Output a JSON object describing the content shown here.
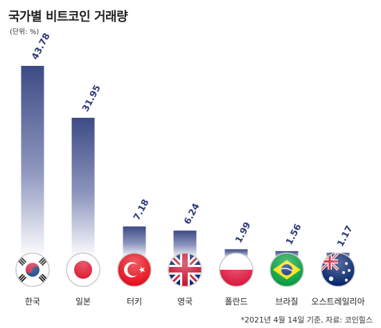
{
  "title": "국가별 비트코인 거래량",
  "unit": "(단위: %)",
  "footnote": "*2021년 4월 14일 기준, 자료: 코인힐스",
  "colors": {
    "bar_top": "#3d4b85",
    "bar_bottom": "#ffffff",
    "value_text": "#2f3a78"
  },
  "chart_data": {
    "type": "bar",
    "categories": [
      "한국",
      "일본",
      "터키",
      "영국",
      "폴란드",
      "브라질",
      "오스트레일리아"
    ],
    "values": [
      43.78,
      31.95,
      7.18,
      6.24,
      1.99,
      1.56,
      1.17
    ],
    "value_labels": [
      "43.78",
      "31.95",
      "7.18",
      "6.24",
      "1.99",
      "1.56",
      "1.17"
    ],
    "icons": [
      "south-korea-flag-icon",
      "japan-flag-icon",
      "turkey-flag-icon",
      "uk-flag-icon",
      "poland-flag-icon",
      "brazil-flag-icon",
      "australia-flag-icon"
    ],
    "title": "국가별 비트코인 거래량",
    "ylim": [
      0,
      43.78
    ],
    "grid": false,
    "legend": "none"
  }
}
